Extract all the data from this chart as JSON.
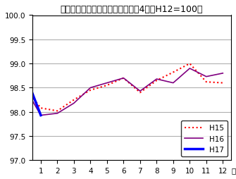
{
  "title": "生鮮食品を除く総合指数の動き　4市（H12=100）",
  "xlabel": "月",
  "ylim": [
    97.0,
    100.0
  ],
  "ytick_vals": [
    97.0,
    97.5,
    98.0,
    98.5,
    99.0,
    99.5,
    100.0
  ],
  "xlim": [
    0.5,
    12.5
  ],
  "xtick_vals": [
    1,
    2,
    3,
    4,
    5,
    6,
    7,
    8,
    9,
    10,
    11,
    12
  ],
  "H15": {
    "x": [
      0,
      1,
      2,
      3,
      4,
      5,
      6,
      7,
      8,
      9,
      10,
      11,
      12
    ],
    "y": [
      98.52,
      98.08,
      98.02,
      98.25,
      98.45,
      98.55,
      98.7,
      98.4,
      98.65,
      98.82,
      99.0,
      98.62,
      98.6
    ],
    "color": "red",
    "linestyle": "dotted",
    "linewidth": 1.5,
    "label": "H15"
  },
  "H16": {
    "x": [
      0,
      1,
      2,
      3,
      4,
      5,
      6,
      7,
      8,
      9,
      10,
      11,
      12
    ],
    "y": [
      98.52,
      97.93,
      97.97,
      98.18,
      98.5,
      98.6,
      98.7,
      98.43,
      98.68,
      98.6,
      98.9,
      98.73,
      98.8
    ],
    "color": "#800080",
    "linestyle": "solid",
    "linewidth": 1.2,
    "label": "H16"
  },
  "H17": {
    "x": [
      0,
      1
    ],
    "y": [
      98.82,
      97.93
    ],
    "color": "blue",
    "linestyle": "solid",
    "linewidth": 2.5,
    "label": "H17"
  },
  "legend_loc": "lower right",
  "background_color": "#ffffff",
  "grid_color": "#b0b0b0",
  "title_fontsize": 9,
  "tick_fontsize": 7.5
}
